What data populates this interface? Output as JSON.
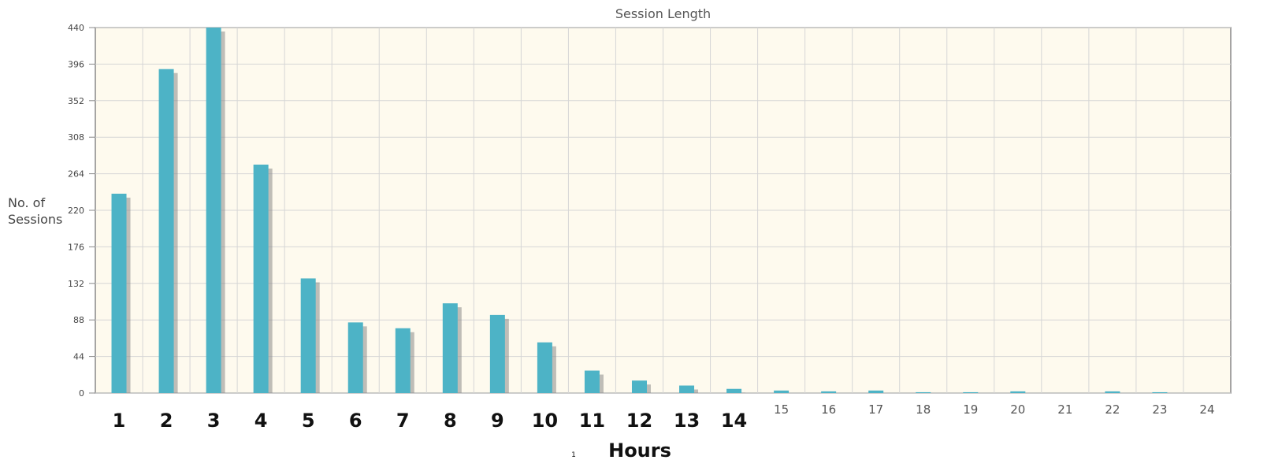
{
  "chart_data": {
    "type": "bar",
    "title": "Session Length",
    "ylabel": [
      "No. of",
      "Sessions"
    ],
    "xlabel": "Hours",
    "xlabel_note": "1",
    "categories": [
      "1",
      "2",
      "3",
      "4",
      "5",
      "6",
      "7",
      "8",
      "9",
      "10",
      "11",
      "12",
      "13",
      "14",
      "15",
      "16",
      "17",
      "18",
      "19",
      "20",
      "21",
      "22",
      "23",
      "24"
    ],
    "values": [
      240,
      390,
      440,
      275,
      138,
      85,
      78,
      108,
      94,
      61,
      27,
      15,
      9,
      5,
      3,
      2,
      3,
      1,
      1,
      2,
      0,
      2,
      1,
      0
    ],
    "ylim": [
      0,
      440
    ],
    "yticks": [
      0,
      44,
      88,
      132,
      176,
      220,
      264,
      308,
      352,
      396,
      440
    ],
    "bold_tick_count": 14,
    "grid": true,
    "colors": {
      "bar": "#4db3c6",
      "shadow": "#8a8a8a",
      "plot_bg": "#fefaee",
      "grid": "#d6d6d6",
      "axis": "#888888"
    }
  }
}
